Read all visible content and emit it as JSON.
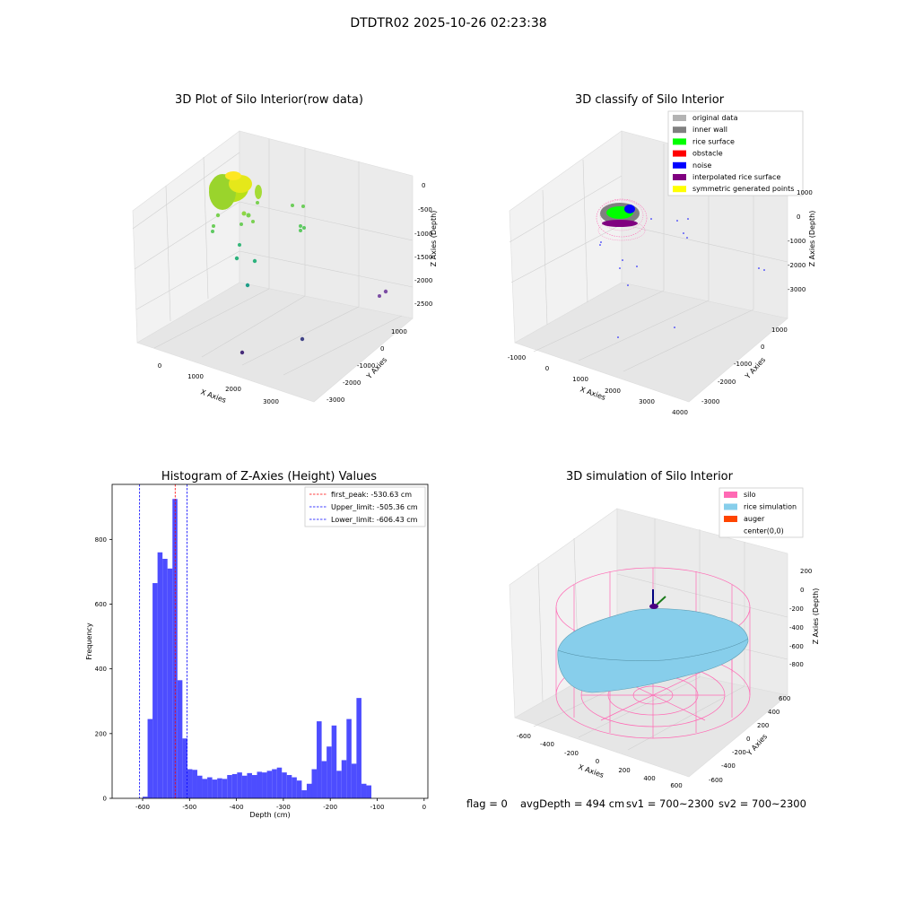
{
  "suptitle": "DTDTR02 2025-10-26 02:23:38",
  "panels": {
    "raw": {
      "title": "3D Plot of Silo Interior(row data)",
      "xlabel": "X Axies",
      "ylabel": "Y Axies",
      "zlabel": "Z Axies (Depth)",
      "xticks": [
        "0",
        "1000",
        "2000",
        "3000"
      ],
      "yticks": [
        "1000",
        "0",
        "-1000",
        "-2000",
        "-3000"
      ],
      "zticks": [
        "0",
        "-500",
        "-1000",
        "-1500",
        "-2000",
        "-2500"
      ]
    },
    "classify": {
      "title": "3D classify of Silo Interior",
      "xlabel": "X Axies",
      "ylabel": "Y Axies",
      "zlabel": "Z Axies (Depth)",
      "xticks": [
        "-1000",
        "0",
        "1000",
        "2000",
        "3000",
        "4000"
      ],
      "yticks": [
        "1000",
        "0",
        "-1000",
        "-2000",
        "-3000"
      ],
      "zticks": [
        "1000",
        "0",
        "-1000",
        "-2000",
        "-3000"
      ],
      "legend": [
        {
          "label": "original data",
          "color": "#b3b3b3"
        },
        {
          "label": "inner wall",
          "color": "#808080"
        },
        {
          "label": "rice surface",
          "color": "#00ff00"
        },
        {
          "label": "obstacle",
          "color": "#ff0000"
        },
        {
          "label": "noise",
          "color": "#0000ff"
        },
        {
          "label": "interpolated rice surface",
          "color": "#800080"
        },
        {
          "label": "symmetric generated points",
          "color": "#ffff00"
        }
      ]
    },
    "simulation": {
      "title": "3D simulation of Silo Interior",
      "xlabel": "X Axies",
      "ylabel": "Y Axies",
      "zlabel": "Z Axies (Depth)",
      "xticks": [
        "-600",
        "-400",
        "-200",
        "0",
        "200",
        "400",
        "600"
      ],
      "yticks": [
        "600",
        "400",
        "200",
        "0",
        "-200",
        "-400",
        "-600"
      ],
      "zticks": [
        "200",
        "0",
        "-200",
        "-400",
        "-600",
        "-800"
      ],
      "legend": [
        {
          "label": "silo",
          "color": "#ff69b4"
        },
        {
          "label": "rice simulation",
          "color": "#87ceeb"
        },
        {
          "label": "auger",
          "color": "#ff4500"
        },
        {
          "label": "center(0,0)",
          "color": ""
        }
      ]
    }
  },
  "footer": {
    "flag": "flag = 0",
    "avg": "avgDepth = 494 cm",
    "sv1": "sv1 = 700~2300",
    "sv2": "sv2 = 700~2300"
  },
  "chart_data": {
    "type": "bar",
    "title": "Histogram of Z-Axies (Height) Values",
    "xlabel": "Depth (cm)",
    "ylabel": "Frequency",
    "xlim": [
      -665,
      8
    ],
    "ylim": [
      0,
      970
    ],
    "xticks": [
      -600,
      -500,
      -400,
      -300,
      -200,
      -100,
      0
    ],
    "yticks": [
      0,
      200,
      400,
      600,
      800
    ],
    "bar_color": "#4d4dff",
    "bin_edges_start": -600,
    "bin_width": 10.6,
    "values": [
      5,
      245,
      665,
      760,
      740,
      710,
      925,
      365,
      185,
      90,
      88,
      70,
      60,
      65,
      58,
      62,
      60,
      72,
      75,
      80,
      70,
      78,
      72,
      82,
      80,
      85,
      90,
      95,
      80,
      72,
      65,
      55,
      25,
      45,
      90,
      238,
      115,
      160,
      225,
      85,
      118,
      245,
      107,
      310,
      45,
      40
    ],
    "vlines": [
      {
        "label": "first_peak: -530.63 cm",
        "x": -530.63,
        "color": "#ff0000"
      },
      {
        "label": "Upper_limit: -505.36 cm",
        "x": -505.36,
        "color": "#0000ff"
      },
      {
        "label": "Lower_limit: -606.43 cm",
        "x": -606.43,
        "color": "#0000ff"
      }
    ]
  }
}
